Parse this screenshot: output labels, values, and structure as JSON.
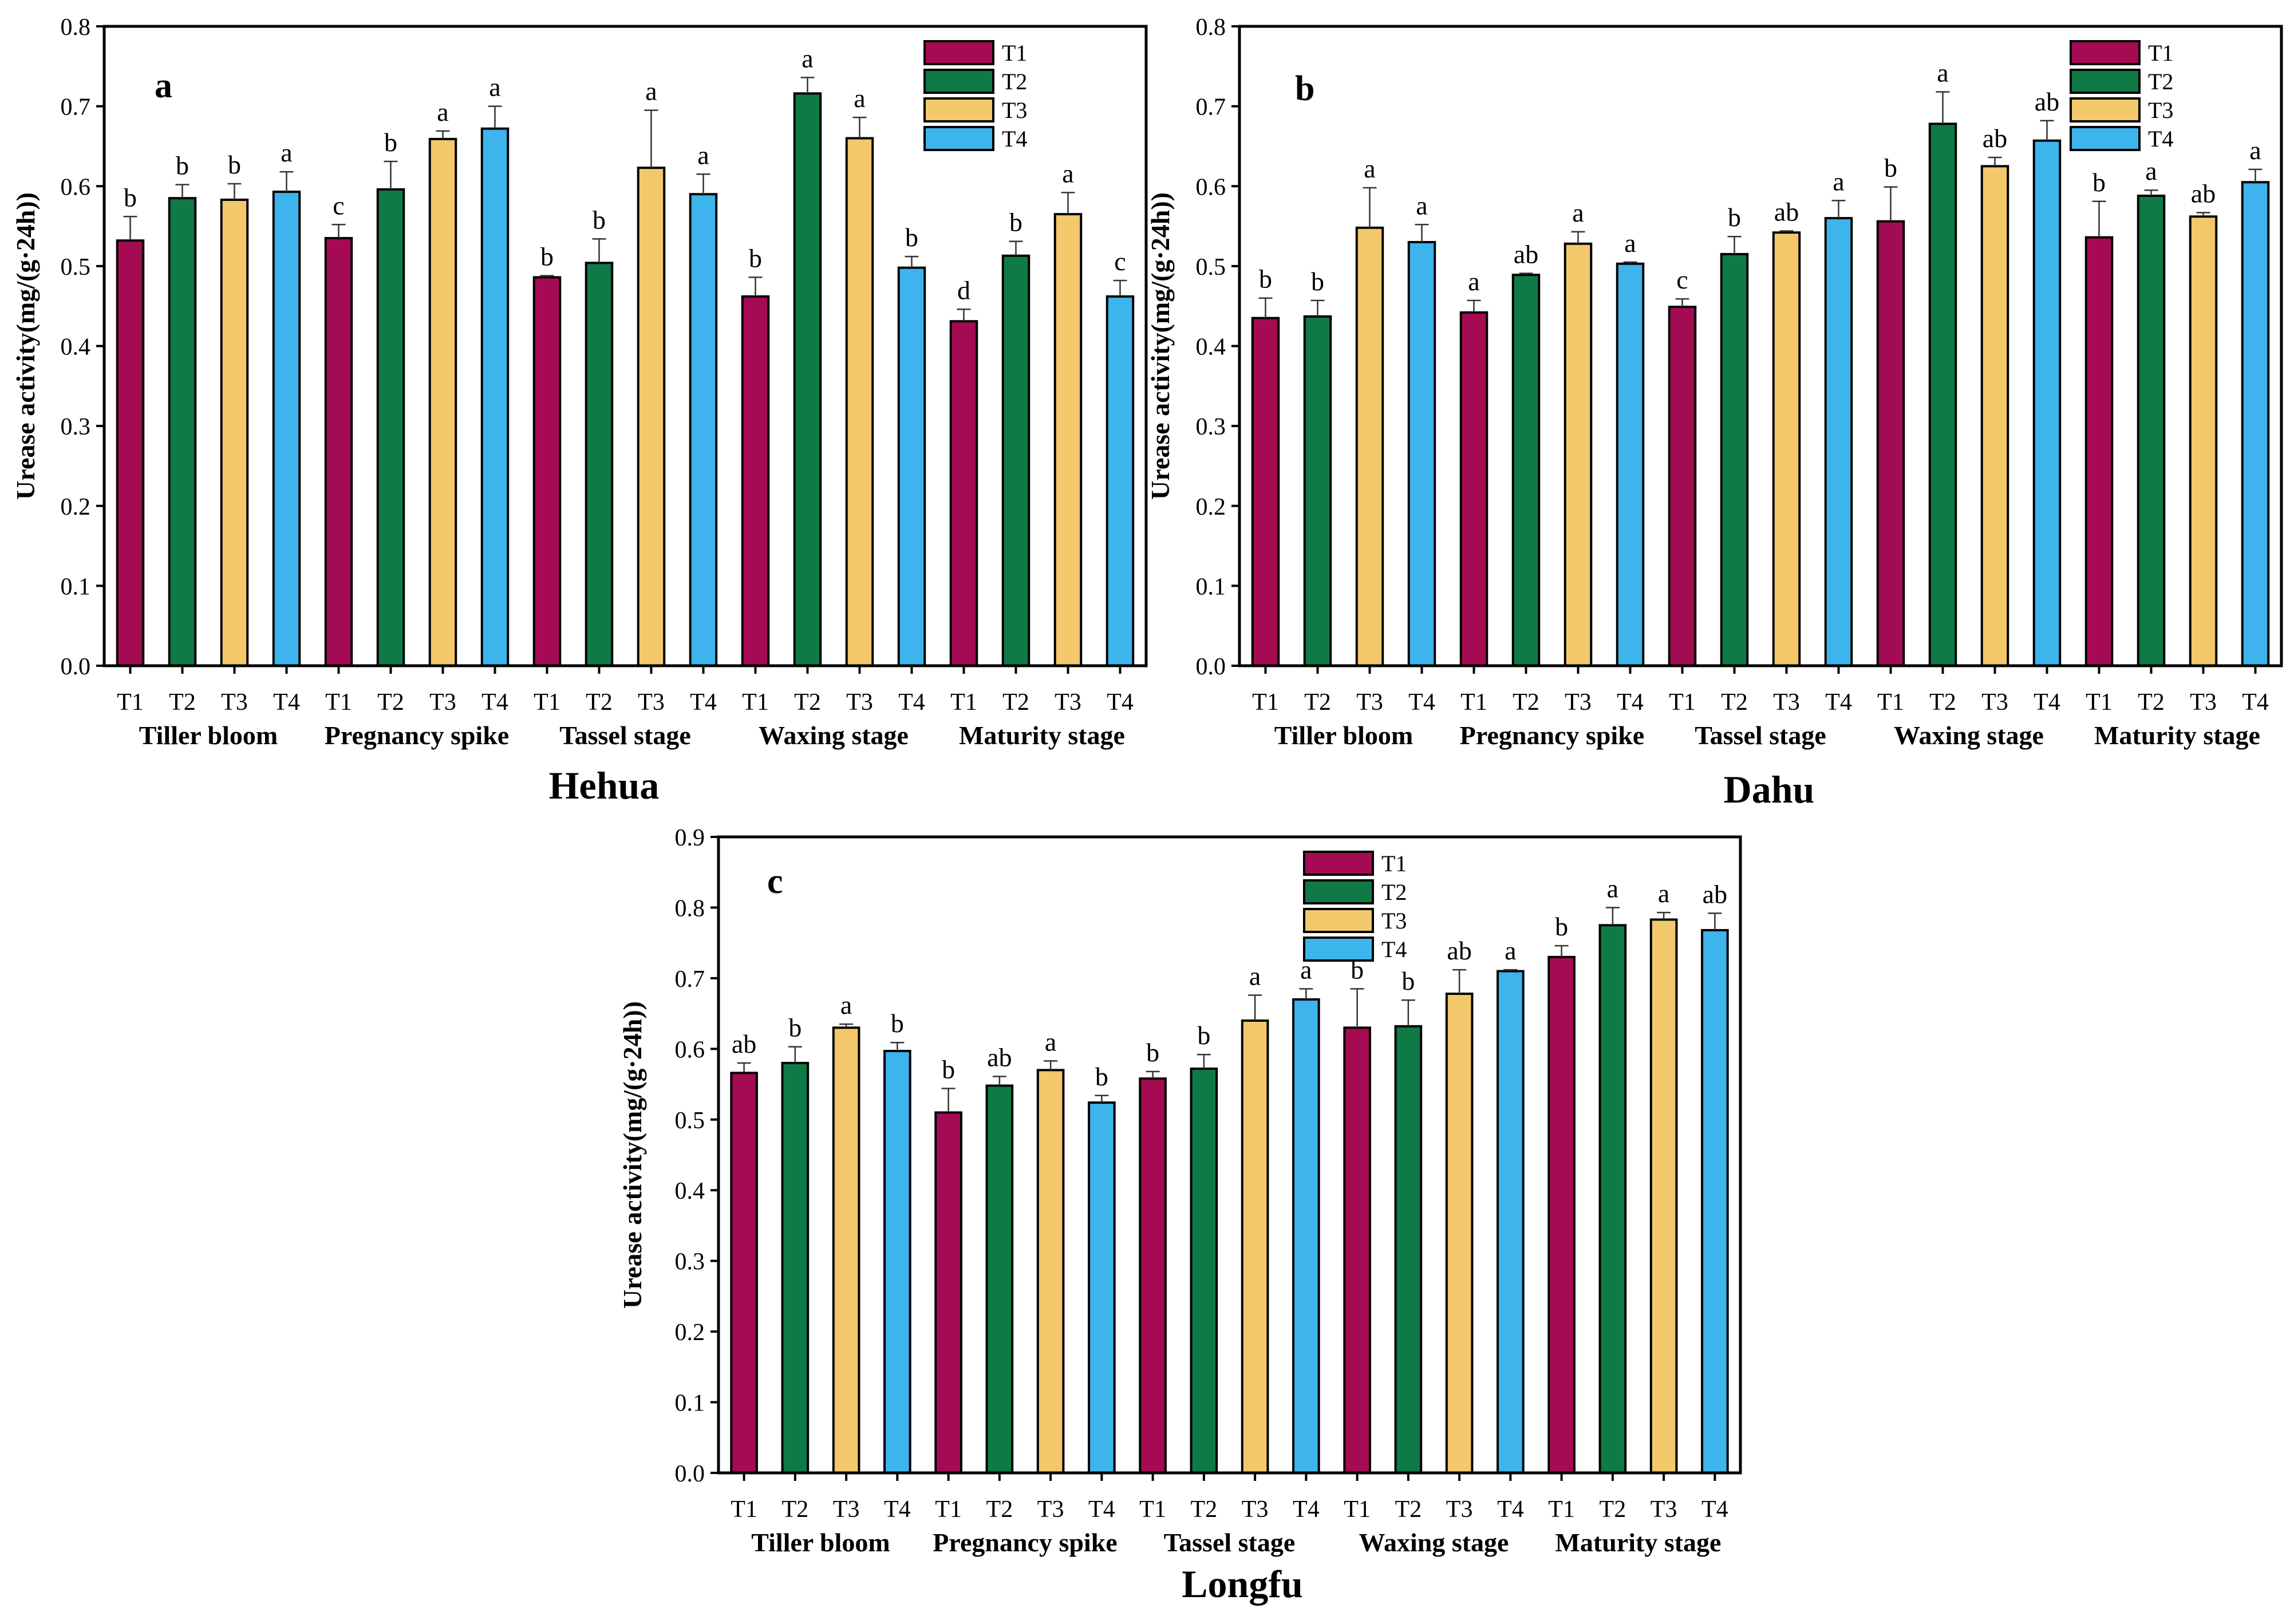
{
  "colors": {
    "T1": "#A50B52",
    "T2": "#0F7A45",
    "T3": "#F2C86B",
    "T4": "#3DB4EC"
  },
  "legend": [
    "T1",
    "T2",
    "T3",
    "T4"
  ],
  "chart_data": [
    {
      "panel": "a",
      "type": "bar",
      "title": "Hehua",
      "ylabel": "Urease activity(mg/(g·24h))",
      "ylim": [
        0,
        0.8
      ],
      "yticks": [
        "0.0",
        "0.1",
        "0.2",
        "0.3",
        "0.4",
        "0.5",
        "0.6",
        "0.7",
        "0.8"
      ],
      "stages": [
        "Tiller bloom",
        "Pregnancy spike",
        "Tassel stage",
        "Waxing stage",
        "Maturity stage"
      ],
      "treatments": [
        "T1",
        "T2",
        "T3",
        "T4"
      ],
      "values": [
        0.532,
        0.585,
        0.583,
        0.593,
        0.535,
        0.596,
        0.659,
        0.672,
        0.486,
        0.504,
        0.623,
        0.59,
        0.462,
        0.716,
        0.66,
        0.498,
        0.431,
        0.513,
        0.565,
        0.462
      ],
      "errors": [
        0.03,
        0.017,
        0.02,
        0.025,
        0.017,
        0.035,
        0.01,
        0.028,
        0.002,
        0.03,
        0.072,
        0.025,
        0.024,
        0.02,
        0.026,
        0.014,
        0.015,
        0.018,
        0.027,
        0.02
      ],
      "significance": [
        "b",
        "b",
        "b",
        "a",
        "c",
        "b",
        "a",
        "a",
        "b",
        "b",
        "a",
        "a",
        "b",
        "a",
        "a",
        "b",
        "d",
        "b",
        "a",
        "c"
      ]
    },
    {
      "panel": "b",
      "type": "bar",
      "title": "Dahu",
      "ylabel": "Urease activity(mg/(g·24h))",
      "ylim": [
        0,
        0.8
      ],
      "yticks": [
        "0.0",
        "0.1",
        "0.2",
        "0.3",
        "0.4",
        "0.5",
        "0.6",
        "0.7",
        "0.8"
      ],
      "stages": [
        "Tiller bloom",
        "Pregnancy spike",
        "Tassel stage",
        "Waxing stage",
        "Maturity stage"
      ],
      "treatments": [
        "T1",
        "T2",
        "T3",
        "T4"
      ],
      "values": [
        0.435,
        0.437,
        0.548,
        0.53,
        0.442,
        0.489,
        0.528,
        0.503,
        0.449,
        0.515,
        0.542,
        0.56,
        0.556,
        0.678,
        0.625,
        0.657,
        0.536,
        0.588,
        0.562,
        0.605
      ],
      "errors": [
        0.025,
        0.02,
        0.05,
        0.022,
        0.015,
        0.002,
        0.015,
        0.002,
        0.01,
        0.022,
        0.002,
        0.022,
        0.043,
        0.04,
        0.011,
        0.025,
        0.045,
        0.007,
        0.005,
        0.016
      ],
      "significance": [
        "b",
        "b",
        "a",
        "a",
        "a",
        "ab",
        "a",
        "a",
        "c",
        "b",
        "ab",
        "a",
        "b",
        "a",
        "ab",
        "ab",
        "b",
        "a",
        "ab",
        "a"
      ]
    },
    {
      "panel": "c",
      "type": "bar",
      "title": "Longfu",
      "ylabel": "Urease activity(mg/(g·24h))",
      "ylim": [
        0,
        0.9
      ],
      "yticks": [
        "0.0",
        "0.1",
        "0.2",
        "0.3",
        "0.4",
        "0.5",
        "0.6",
        "0.7",
        "0.8",
        "0.9"
      ],
      "stages": [
        "Tiller bloom",
        "Pregnancy spike",
        "Tassel stage",
        "Waxing stage",
        "Maturity stage"
      ],
      "treatments": [
        "T1",
        "T2",
        "T3",
        "T4"
      ],
      "values": [
        0.566,
        0.58,
        0.63,
        0.597,
        0.51,
        0.548,
        0.57,
        0.524,
        0.558,
        0.572,
        0.64,
        0.67,
        0.63,
        0.632,
        0.678,
        0.71,
        0.73,
        0.775,
        0.783,
        0.768
      ],
      "errors": [
        0.014,
        0.023,
        0.005,
        0.012,
        0.034,
        0.013,
        0.013,
        0.01,
        0.01,
        0.02,
        0.036,
        0.015,
        0.055,
        0.037,
        0.034,
        0.002,
        0.016,
        0.025,
        0.01,
        0.024
      ],
      "significance": [
        "ab",
        "b",
        "a",
        "b",
        "b",
        "ab",
        "a",
        "b",
        "b",
        "b",
        "a",
        "a",
        "b",
        "b",
        "ab",
        "a",
        "b",
        "a",
        "a",
        "ab"
      ]
    }
  ]
}
